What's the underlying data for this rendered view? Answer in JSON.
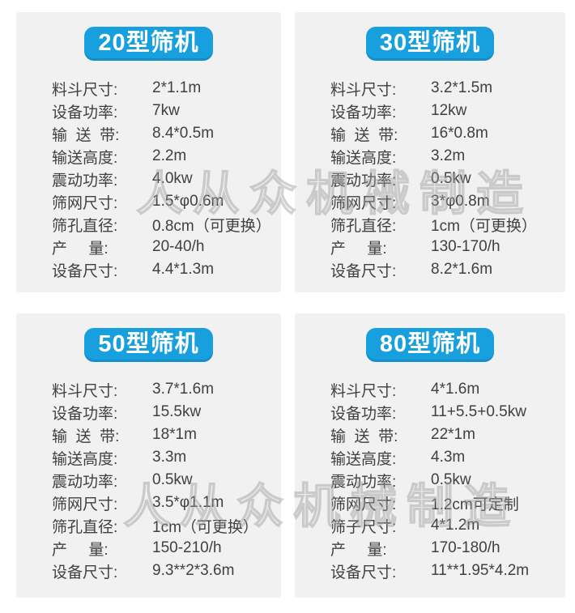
{
  "colors": {
    "accent_blue": "#18a0de",
    "card_background": "#f1f1f2",
    "text": "#404040",
    "watermark_gray": "#9d9d9d"
  },
  "watermark": {
    "text": "人从众机械制造"
  },
  "cards": [
    {
      "title": "20型筛机",
      "specs": [
        {
          "label": "料斗尺寸:",
          "value": "2*1.1m"
        },
        {
          "label": "设备功率:",
          "value": "7kw"
        },
        {
          "label": "输  送  带:",
          "value": "8.4*0.5m"
        },
        {
          "label": "输送高度:",
          "value": "2.2m"
        },
        {
          "label": "震动功率:",
          "value": "4.0kw"
        },
        {
          "label": "筛网尺寸:",
          "value": "1.5*φ0.6m"
        },
        {
          "label": "筛孔直径:",
          "value": "0.8cm（可更换）"
        },
        {
          "label": "产     量:",
          "value": "20-40/h"
        },
        {
          "label": "设备尺寸:",
          "value": "4.4*1.3m"
        }
      ]
    },
    {
      "title": "30型筛机",
      "specs": [
        {
          "label": "料斗尺寸:",
          "value": "3.2*1.5m"
        },
        {
          "label": "设备功率:",
          "value": "12kw"
        },
        {
          "label": "输  送  带:",
          "value": "16*0.8m"
        },
        {
          "label": "输送高度:",
          "value": "3.2m"
        },
        {
          "label": "震动功率:",
          "value": "0.5kw"
        },
        {
          "label": "筛网尺寸:",
          "value": "3*φ0.8m"
        },
        {
          "label": "筛孔直径:",
          "value": "1cm（可更换）"
        },
        {
          "label": "产     量:",
          "value": "130-170/h"
        },
        {
          "label": "设备尺寸:",
          "value": "8.2*1.6m"
        }
      ]
    },
    {
      "title": "50型筛机",
      "specs": [
        {
          "label": "料斗尺寸:",
          "value": "3.7*1.6m"
        },
        {
          "label": "设备功率:",
          "value": "15.5kw"
        },
        {
          "label": "输  送  带:",
          "value": "18*1m"
        },
        {
          "label": "输送高度:",
          "value": "3.3m"
        },
        {
          "label": "震动功率:",
          "value": "0.5kw"
        },
        {
          "label": "筛网尺寸:",
          "value": "3.5*φ1.1m"
        },
        {
          "label": "筛孔直径:",
          "value": "1cm（可更换）"
        },
        {
          "label": "产     量:",
          "value": "150-210/h"
        },
        {
          "label": "设备尺寸:",
          "value": "9.3**2*3.6m"
        }
      ]
    },
    {
      "title": "80型筛机",
      "specs": [
        {
          "label": "料斗尺寸:",
          "value": "4*1.6m"
        },
        {
          "label": "设备功率:",
          "value": "11+5.5+0.5kw"
        },
        {
          "label": "输  送  带:",
          "value": "22*1m"
        },
        {
          "label": "输送高度:",
          "value": "4.3m"
        },
        {
          "label": "震动功率:",
          "value": "0.5kw"
        },
        {
          "label": "筛网尺寸:",
          "value": "1.2cm可定制"
        },
        {
          "label": "筛子尺寸:",
          "value": "4*1.2m"
        },
        {
          "label": "产     量:",
          "value": "170-180/h"
        },
        {
          "label": "设备尺寸:",
          "value": "11**1.95*4.2m"
        }
      ]
    }
  ]
}
